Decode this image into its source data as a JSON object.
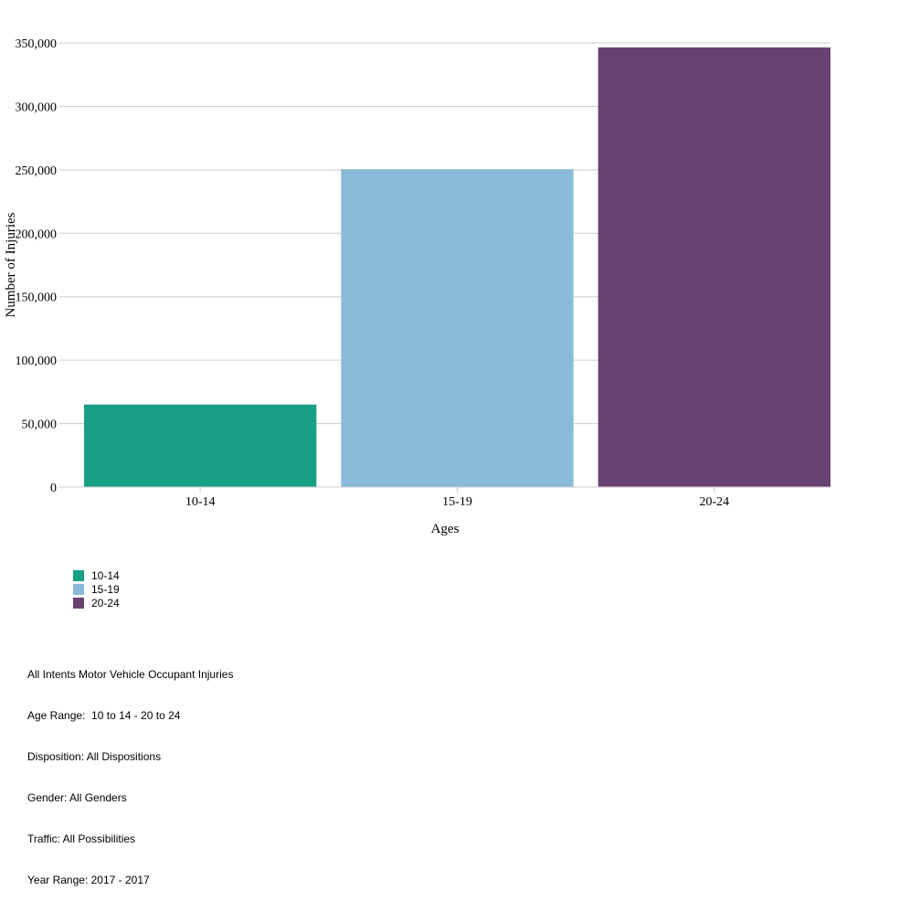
{
  "chart_data": {
    "type": "bar",
    "categories": [
      "10-14",
      "15-19",
      "20-24"
    ],
    "values": [
      65000,
      250500,
      346500
    ],
    "colors": [
      "#17a086",
      "#89bbd8",
      "#674270"
    ],
    "xlabel": "Ages",
    "ylabel": "Number of Injuries",
    "ylim": [
      0,
      350000
    ],
    "yticks": [
      0,
      50000,
      100000,
      150000,
      200000,
      250000,
      300000,
      350000
    ],
    "ytick_labels": [
      "0",
      "50,000",
      "100,000",
      "150,000",
      "200,000",
      "250,000",
      "300,000",
      "350,000"
    ],
    "grid": true
  },
  "legend": [
    {
      "label": "10-14",
      "color": "#17a086"
    },
    {
      "label": "15-19",
      "color": "#89bbd8"
    },
    {
      "label": "20-24",
      "color": "#674270"
    }
  ],
  "notes": [
    "All Intents Motor Vehicle Occupant Injuries",
    "Age Range:  10 to 14 - 20 to 24",
    "Disposition: All Dispositions",
    "Gender: All Genders",
    "Traffic: All Possibilities",
    "Year Range: 2017 - 2017"
  ]
}
